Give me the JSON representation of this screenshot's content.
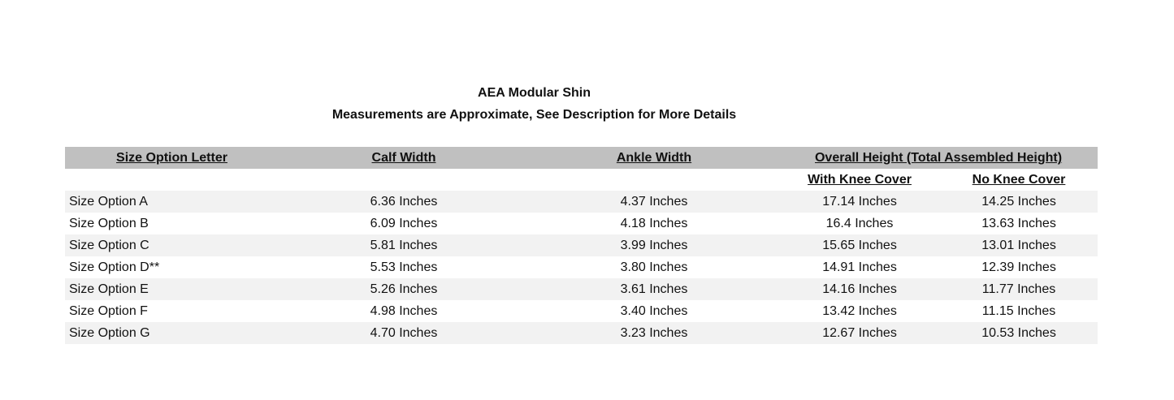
{
  "title": "AEA Modular Shin",
  "subtitle": "Measurements are Approximate, See Description for More Details",
  "table": {
    "headers": {
      "size": "Size Option Letter",
      "calf": "Calf Width",
      "ankle": "Ankle Width",
      "overall": "Overall Height (Total Assembled Height)",
      "with_knee": "With Knee Cover",
      "no_knee": "No Knee Cover"
    },
    "rows": [
      {
        "size": "Size Option A",
        "calf": "6.36 Inches",
        "ankle": "4.37 Inches",
        "with_knee": "17.14 Inches",
        "no_knee": "14.25 Inches"
      },
      {
        "size": "Size Option B",
        "calf": "6.09 Inches",
        "ankle": "4.18 Inches",
        "with_knee": "16.4 Inches",
        "no_knee": "13.63 Inches"
      },
      {
        "size": "Size Option C",
        "calf": "5.81 Inches",
        "ankle": "3.99 Inches",
        "with_knee": "15.65 Inches",
        "no_knee": "13.01 Inches"
      },
      {
        "size": "Size Option D**",
        "calf": "5.53 Inches",
        "ankle": "3.80 Inches",
        "with_knee": "14.91 Inches",
        "no_knee": "12.39 Inches"
      },
      {
        "size": "Size Option E",
        "calf": "5.26 Inches",
        "ankle": "3.61 Inches",
        "with_knee": "14.16 Inches",
        "no_knee": "11.77 Inches"
      },
      {
        "size": "Size Option F",
        "calf": "4.98 Inches",
        "ankle": "3.40 Inches",
        "with_knee": "13.42 Inches",
        "no_knee": "11.15 Inches"
      },
      {
        "size": "Size Option G",
        "calf": "4.70 Inches",
        "ankle": "3.23 Inches",
        "with_knee": "12.67 Inches",
        "no_knee": "10.53 Inches"
      }
    ]
  },
  "colors": {
    "header_bg": "#c0c0c0",
    "stripe_bg": "#f2f2f2"
  }
}
